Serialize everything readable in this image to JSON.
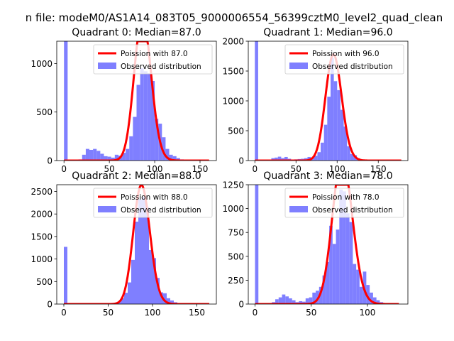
{
  "figure": {
    "suptitle": "n file: modeM0/AS1A14_083T05_9000006554_56399cztM0_level2_quad_clean"
  },
  "colors": {
    "poisson": "#ff0000",
    "observed": "#7f7fff"
  },
  "chart_data": [
    {
      "type": "bar+line",
      "title": "Quadrant 0: Median=87.0",
      "median": 87.0,
      "xlim": [
        -8,
        168
      ],
      "ylim": [
        0,
        1230
      ],
      "xticks": [
        0,
        50,
        100,
        150
      ],
      "yticks": [
        0,
        500,
        1000
      ],
      "bin_width": 4,
      "hist": [
        [
          0,
          1230
        ],
        [
          4,
          10
        ],
        [
          8,
          5
        ],
        [
          12,
          5
        ],
        [
          16,
          12
        ],
        [
          20,
          60
        ],
        [
          24,
          120
        ],
        [
          28,
          110
        ],
        [
          32,
          120
        ],
        [
          36,
          100
        ],
        [
          40,
          70
        ],
        [
          44,
          45
        ],
        [
          48,
          40
        ],
        [
          52,
          30
        ],
        [
          56,
          60
        ],
        [
          60,
          50
        ],
        [
          64,
          80
        ],
        [
          68,
          120
        ],
        [
          72,
          250
        ],
        [
          76,
          450
        ],
        [
          80,
          780
        ],
        [
          84,
          950
        ],
        [
          88,
          920
        ],
        [
          92,
          900
        ],
        [
          96,
          820
        ],
        [
          100,
          430
        ],
        [
          104,
          380
        ],
        [
          108,
          240
        ],
        [
          112,
          120
        ],
        [
          116,
          60
        ],
        [
          120,
          45
        ],
        [
          124,
          25
        ],
        [
          128,
          12
        ],
        [
          132,
          6
        ],
        [
          136,
          3
        ],
        [
          140,
          2
        ]
      ],
      "legend": [
        {
          "label": "Poission with 87.0",
          "kind": "line",
          "color": "#ff0000"
        },
        {
          "label": "Observed distribution",
          "kind": "patch",
          "color": "#7f7fff"
        }
      ]
    },
    {
      "type": "bar+line",
      "title": "Quadrant 1: Median=96.0",
      "median": 96.0,
      "xlim": [
        -8,
        186
      ],
      "ylim": [
        0,
        2000
      ],
      "xticks": [
        0,
        50,
        100,
        150
      ],
      "yticks": [
        0,
        500,
        1000,
        1500,
        2000
      ],
      "bin_width": 4,
      "hist": [
        [
          0,
          2000
        ],
        [
          4,
          10
        ],
        [
          8,
          5
        ],
        [
          12,
          5
        ],
        [
          16,
          15
        ],
        [
          20,
          40
        ],
        [
          24,
          50
        ],
        [
          28,
          65
        ],
        [
          32,
          40
        ],
        [
          36,
          60
        ],
        [
          40,
          30
        ],
        [
          44,
          15
        ],
        [
          48,
          20
        ],
        [
          52,
          25
        ],
        [
          56,
          30
        ],
        [
          60,
          40
        ],
        [
          64,
          60
        ],
        [
          68,
          50
        ],
        [
          72,
          80
        ],
        [
          76,
          140
        ],
        [
          80,
          300
        ],
        [
          84,
          600
        ],
        [
          88,
          1070
        ],
        [
          92,
          1720
        ],
        [
          96,
          1330
        ],
        [
          100,
          1180
        ],
        [
          104,
          850
        ],
        [
          108,
          570
        ],
        [
          112,
          240
        ],
        [
          116,
          110
        ],
        [
          120,
          90
        ],
        [
          124,
          40
        ],
        [
          128,
          20
        ],
        [
          132,
          10
        ],
        [
          136,
          5
        ],
        [
          140,
          3
        ]
      ],
      "legend": [
        {
          "label": "Poission with 96.0",
          "kind": "line",
          "color": "#ff0000"
        },
        {
          "label": "Observed distribution",
          "kind": "patch",
          "color": "#7f7fff"
        }
      ]
    },
    {
      "type": "bar+line",
      "title": "Quadrant 2: Median=88.0",
      "median": 88.0,
      "xlim": [
        -8,
        172
      ],
      "ylim": [
        0,
        2650
      ],
      "xticks": [
        0,
        50,
        100,
        150
      ],
      "yticks": [
        0,
        500,
        1000,
        1500,
        2000,
        2500
      ],
      "bin_width": 4,
      "hist": [
        [
          0,
          1270
        ],
        [
          4,
          5
        ],
        [
          8,
          3
        ],
        [
          12,
          2
        ],
        [
          16,
          3
        ],
        [
          20,
          4
        ],
        [
          24,
          5
        ],
        [
          28,
          6
        ],
        [
          32,
          5
        ],
        [
          36,
          6
        ],
        [
          40,
          8
        ],
        [
          44,
          10
        ],
        [
          48,
          15
        ],
        [
          52,
          20
        ],
        [
          56,
          30
        ],
        [
          60,
          40
        ],
        [
          64,
          130
        ],
        [
          68,
          250
        ],
        [
          72,
          480
        ],
        [
          76,
          980
        ],
        [
          80,
          1830
        ],
        [
          84,
          2320
        ],
        [
          88,
          2380
        ],
        [
          92,
          2160
        ],
        [
          96,
          1200
        ],
        [
          100,
          1020
        ],
        [
          104,
          580
        ],
        [
          108,
          260
        ],
        [
          112,
          240
        ],
        [
          116,
          130
        ],
        [
          120,
          80
        ],
        [
          124,
          40
        ],
        [
          128,
          20
        ],
        [
          132,
          10
        ],
        [
          136,
          5
        ]
      ],
      "legend": [
        {
          "label": "Poission with 88.0",
          "kind": "line",
          "color": "#ff0000"
        },
        {
          "label": "Observed distribution",
          "kind": "patch",
          "color": "#7f7fff"
        }
      ]
    },
    {
      "type": "bar+line",
      "title": "Quadrant 3: Median=78.0",
      "median": 78.0,
      "xlim": [
        -6,
        136
      ],
      "ylim": [
        0,
        1250
      ],
      "xticks": [
        0,
        50,
        100
      ],
      "yticks": [
        0,
        250,
        500,
        750,
        1000,
        1250
      ],
      "bin_width": 3,
      "hist": [
        [
          0,
          1250
        ],
        [
          3,
          10
        ],
        [
          6,
          5
        ],
        [
          9,
          5
        ],
        [
          12,
          5
        ],
        [
          15,
          20
        ],
        [
          18,
          50
        ],
        [
          21,
          70
        ],
        [
          24,
          100
        ],
        [
          27,
          80
        ],
        [
          30,
          60
        ],
        [
          33,
          40
        ],
        [
          36,
          20
        ],
        [
          39,
          30
        ],
        [
          42,
          25
        ],
        [
          45,
          60
        ],
        [
          48,
          70
        ],
        [
          51,
          120
        ],
        [
          54,
          140
        ],
        [
          57,
          180
        ],
        [
          60,
          300
        ],
        [
          63,
          440
        ],
        [
          66,
          820
        ],
        [
          69,
          630
        ],
        [
          72,
          780
        ],
        [
          75,
          1200
        ],
        [
          78,
          1180
        ],
        [
          81,
          950
        ],
        [
          84,
          860
        ],
        [
          87,
          420
        ],
        [
          90,
          360
        ],
        [
          93,
          180
        ],
        [
          96,
          340
        ],
        [
          99,
          200
        ],
        [
          102,
          120
        ],
        [
          105,
          70
        ],
        [
          108,
          40
        ],
        [
          111,
          20
        ],
        [
          114,
          10
        ],
        [
          117,
          5
        ]
      ],
      "legend": [
        {
          "label": "Poission with 78.0",
          "kind": "line",
          "color": "#ff0000"
        },
        {
          "label": "Observed distribution",
          "kind": "patch",
          "color": "#7f7fff"
        }
      ]
    }
  ]
}
